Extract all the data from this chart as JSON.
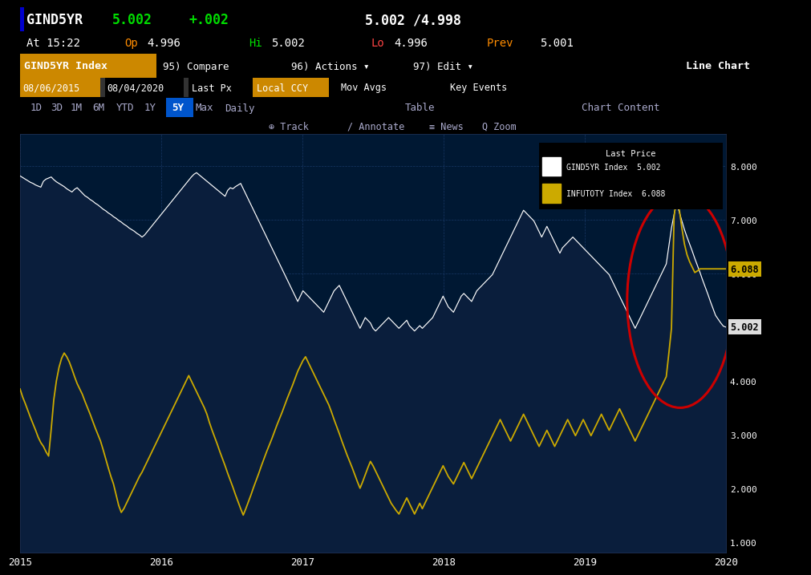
{
  "bg_color": "#000000",
  "plot_bg_color": "#001833",
  "title_bar_color": "#8b0000",
  "ticker_bar_color": "#cc8800",
  "series1_color": "#ffffff",
  "series2_color": "#ccaa00",
  "fill_color": "#0a1e3c",
  "yticks": [
    1.0,
    2.0,
    3.0,
    4.0,
    5.0,
    6.0,
    7.0,
    8.0
  ],
  "ylim": [
    0.8,
    8.6
  ],
  "xtick_labels": [
    "2015",
    "2016",
    "2017",
    "2018",
    "2019",
    "2020"
  ],
  "grid_color": "#1a3a6a",
  "annotation_label1": "6.088",
  "annotation_label2": "5.002",
  "red_circle_color": "#cc0000",
  "legend_title": "Last Price",
  "series1_label": "GIND5YR Index",
  "series1_last": "5.002",
  "series2_label": "INFUTOTY Index",
  "series2_last": "6.088",
  "gind5yr": [
    7.82,
    7.79,
    7.76,
    7.73,
    7.7,
    7.68,
    7.65,
    7.63,
    7.61,
    7.72,
    7.76,
    7.78,
    7.8,
    7.75,
    7.71,
    7.68,
    7.65,
    7.62,
    7.58,
    7.55,
    7.52,
    7.57,
    7.6,
    7.55,
    7.5,
    7.45,
    7.42,
    7.38,
    7.35,
    7.31,
    7.28,
    7.24,
    7.2,
    7.17,
    7.13,
    7.1,
    7.06,
    7.03,
    6.99,
    6.96,
    6.92,
    6.89,
    6.85,
    6.82,
    6.79,
    6.75,
    6.72,
    6.68,
    6.72,
    6.78,
    6.84,
    6.9,
    6.96,
    7.02,
    7.08,
    7.14,
    7.2,
    7.26,
    7.32,
    7.38,
    7.44,
    7.5,
    7.56,
    7.62,
    7.68,
    7.74,
    7.8,
    7.85,
    7.88,
    7.84,
    7.8,
    7.76,
    7.72,
    7.68,
    7.64,
    7.6,
    7.56,
    7.52,
    7.48,
    7.44,
    7.55,
    7.6,
    7.58,
    7.62,
    7.65,
    7.68,
    7.58,
    7.48,
    7.38,
    7.28,
    7.18,
    7.08,
    6.98,
    6.88,
    6.78,
    6.68,
    6.58,
    6.48,
    6.38,
    6.28,
    6.18,
    6.08,
    5.98,
    5.88,
    5.78,
    5.68,
    5.58,
    5.48,
    5.58,
    5.68,
    5.63,
    5.58,
    5.53,
    5.48,
    5.43,
    5.38,
    5.33,
    5.28,
    5.38,
    5.48,
    5.58,
    5.68,
    5.73,
    5.78,
    5.68,
    5.58,
    5.48,
    5.38,
    5.28,
    5.18,
    5.08,
    4.98,
    5.08,
    5.18,
    5.13,
    5.08,
    4.98,
    4.93,
    4.98,
    5.03,
    5.08,
    5.13,
    5.18,
    5.13,
    5.08,
    5.03,
    4.98,
    5.03,
    5.08,
    5.13,
    5.03,
    4.98,
    4.93,
    4.98,
    5.03,
    4.98,
    5.03,
    5.08,
    5.13,
    5.18,
    5.28,
    5.38,
    5.48,
    5.58,
    5.48,
    5.38,
    5.33,
    5.28,
    5.38,
    5.48,
    5.58,
    5.63,
    5.58,
    5.53,
    5.48,
    5.58,
    5.68,
    5.73,
    5.78,
    5.83,
    5.88,
    5.93,
    5.98,
    6.08,
    6.18,
    6.28,
    6.38,
    6.48,
    6.58,
    6.68,
    6.78,
    6.88,
    6.98,
    7.08,
    7.18,
    7.13,
    7.08,
    7.03,
    6.98,
    6.88,
    6.78,
    6.68,
    6.78,
    6.88,
    6.78,
    6.68,
    6.58,
    6.48,
    6.38,
    6.48,
    6.53,
    6.58,
    6.63,
    6.68,
    6.63,
    6.58,
    6.53,
    6.48,
    6.43,
    6.38,
    6.33,
    6.28,
    6.23,
    6.18,
    6.13,
    6.08,
    6.03,
    5.98,
    5.88,
    5.78,
    5.68,
    5.58,
    5.48,
    5.38,
    5.28,
    5.18,
    5.08,
    4.98,
    5.08,
    5.18,
    5.28,
    5.38,
    5.48,
    5.58,
    5.68,
    5.78,
    5.88,
    5.98,
    6.08,
    6.18,
    6.52,
    6.85,
    7.1,
    7.3,
    7.15,
    6.98,
    6.82,
    6.68,
    6.55,
    6.42,
    6.28,
    6.15,
    6.02,
    5.88,
    5.75,
    5.62,
    5.48,
    5.35,
    5.22,
    5.15,
    5.08,
    5.02,
    5.002
  ],
  "infutoty": [
    3.85,
    3.7,
    3.58,
    3.45,
    3.32,
    3.2,
    3.08,
    2.95,
    2.85,
    2.78,
    2.68,
    2.6,
    3.1,
    3.65,
    4.0,
    4.25,
    4.42,
    4.52,
    4.45,
    4.35,
    4.22,
    4.08,
    3.95,
    3.85,
    3.75,
    3.62,
    3.5,
    3.38,
    3.25,
    3.12,
    3.0,
    2.88,
    2.72,
    2.55,
    2.38,
    2.22,
    2.08,
    1.88,
    1.68,
    1.55,
    1.62,
    1.72,
    1.82,
    1.92,
    2.02,
    2.12,
    2.22,
    2.3,
    2.4,
    2.5,
    2.6,
    2.7,
    2.8,
    2.9,
    3.0,
    3.1,
    3.2,
    3.3,
    3.4,
    3.5,
    3.6,
    3.7,
    3.8,
    3.9,
    4.0,
    4.1,
    4.0,
    3.9,
    3.8,
    3.7,
    3.6,
    3.5,
    3.38,
    3.22,
    3.08,
    2.95,
    2.82,
    2.68,
    2.55,
    2.42,
    2.28,
    2.15,
    2.02,
    1.88,
    1.75,
    1.62,
    1.5,
    1.62,
    1.75,
    1.88,
    2.02,
    2.15,
    2.28,
    2.42,
    2.55,
    2.68,
    2.8,
    2.92,
    3.05,
    3.18,
    3.3,
    3.42,
    3.55,
    3.68,
    3.8,
    3.92,
    4.05,
    4.18,
    4.28,
    4.38,
    4.45,
    4.35,
    4.25,
    4.15,
    4.05,
    3.95,
    3.85,
    3.75,
    3.65,
    3.55,
    3.42,
    3.28,
    3.15,
    3.02,
    2.88,
    2.75,
    2.62,
    2.5,
    2.38,
    2.25,
    2.12,
    2.0,
    2.12,
    2.25,
    2.38,
    2.5,
    2.42,
    2.32,
    2.22,
    2.12,
    2.02,
    1.92,
    1.82,
    1.72,
    1.65,
    1.58,
    1.52,
    1.62,
    1.72,
    1.82,
    1.72,
    1.62,
    1.52,
    1.62,
    1.72,
    1.62,
    1.72,
    1.82,
    1.92,
    2.02,
    2.12,
    2.22,
    2.32,
    2.42,
    2.32,
    2.22,
    2.15,
    2.08,
    2.18,
    2.28,
    2.38,
    2.48,
    2.38,
    2.28,
    2.18,
    2.28,
    2.38,
    2.48,
    2.58,
    2.68,
    2.78,
    2.88,
    2.98,
    3.08,
    3.18,
    3.28,
    3.18,
    3.08,
    2.98,
    2.88,
    2.98,
    3.08,
    3.18,
    3.28,
    3.38,
    3.28,
    3.18,
    3.08,
    2.98,
    2.88,
    2.78,
    2.88,
    2.98,
    3.08,
    2.98,
    2.88,
    2.78,
    2.88,
    2.98,
    3.08,
    3.18,
    3.28,
    3.18,
    3.08,
    2.98,
    3.08,
    3.18,
    3.28,
    3.18,
    3.08,
    2.98,
    3.08,
    3.18,
    3.28,
    3.38,
    3.28,
    3.18,
    3.08,
    3.18,
    3.28,
    3.38,
    3.48,
    3.38,
    3.28,
    3.18,
    3.08,
    2.98,
    2.88,
    2.98,
    3.08,
    3.18,
    3.28,
    3.38,
    3.48,
    3.58,
    3.68,
    3.78,
    3.88,
    3.98,
    4.08,
    4.52,
    4.98,
    7.05,
    7.52,
    7.2,
    6.85,
    6.55,
    6.35,
    6.22,
    6.12,
    6.02,
    6.05,
    6.088,
    6.088,
    6.088,
    6.088,
    6.088,
    6.088,
    6.088,
    6.088,
    6.088,
    6.088,
    6.088
  ]
}
